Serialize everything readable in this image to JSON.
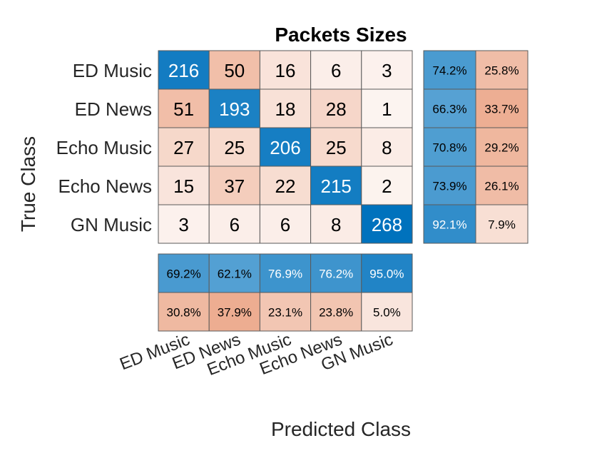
{
  "chart_data": {
    "type": "heatmap",
    "title": "Packets Sizes",
    "xlabel": "Predicted Class",
    "ylabel": "True Class",
    "classes": [
      "ED Music",
      "ED News",
      "Echo Music",
      "Echo News",
      "GN Music"
    ],
    "matrix": [
      [
        216,
        50,
        16,
        6,
        3
      ],
      [
        51,
        193,
        18,
        28,
        1
      ],
      [
        27,
        25,
        206,
        25,
        8
      ],
      [
        15,
        37,
        22,
        215,
        2
      ],
      [
        3,
        6,
        6,
        8,
        268
      ]
    ],
    "row_summary": [
      [
        "74.2%",
        "25.8%"
      ],
      [
        "66.3%",
        "33.7%"
      ],
      [
        "70.8%",
        "29.2%"
      ],
      [
        "73.9%",
        "26.1%"
      ],
      [
        "92.1%",
        "7.9%"
      ]
    ],
    "col_summary": {
      "correct": [
        "69.2%",
        "62.1%",
        "76.9%",
        "76.2%",
        "95.0%"
      ],
      "incorrect": [
        "30.8%",
        "37.9%",
        "23.1%",
        "23.8%",
        "5.0%"
      ]
    },
    "colors": {
      "positive": "#0072bd",
      "negative": "#d95319",
      "text_dark": "#000000",
      "text_light": "#ffffff",
      "grid": "#5a5a5a"
    }
  }
}
